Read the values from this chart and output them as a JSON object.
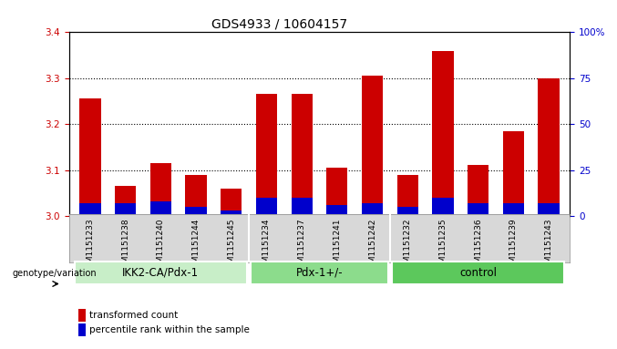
{
  "title": "GDS4933 / 10604157",
  "samples": [
    "GSM1151233",
    "GSM1151238",
    "GSM1151240",
    "GSM1151244",
    "GSM1151245",
    "GSM1151234",
    "GSM1151237",
    "GSM1151241",
    "GSM1151242",
    "GSM1151232",
    "GSM1151235",
    "GSM1151236",
    "GSM1151239",
    "GSM1151243"
  ],
  "red_values": [
    3.255,
    3.065,
    3.115,
    3.09,
    3.06,
    3.265,
    3.265,
    3.105,
    3.305,
    3.09,
    3.36,
    3.11,
    3.185,
    3.3
  ],
  "blue_percentile": [
    7,
    7,
    8,
    5,
    3,
    10,
    10,
    6,
    7,
    5,
    10,
    7,
    7,
    7
  ],
  "groups": [
    {
      "label": "IKK2-CA/Pdx-1",
      "start": 0,
      "end": 5,
      "color": "#c8eec8"
    },
    {
      "label": "Pdx-1+/-",
      "start": 5,
      "end": 9,
      "color": "#8cdc8c"
    },
    {
      "label": "control",
      "start": 9,
      "end": 14,
      "color": "#5cc85c"
    }
  ],
  "y_min": 3.0,
  "y_max": 3.4,
  "y_ticks": [
    3.0,
    3.1,
    3.2,
    3.3,
    3.4
  ],
  "y2_ticks": [
    0,
    25,
    50,
    75,
    100
  ],
  "bar_color_red": "#cc0000",
  "bar_color_blue": "#0000cc",
  "bar_width": 0.6,
  "tick_color_left": "#cc0000",
  "tick_color_right": "#0000cc",
  "title_fontsize": 10,
  "tick_fontsize": 7.5,
  "sample_fontsize": 6.5,
  "group_label_fontsize": 8.5,
  "legend_fontsize": 7.5,
  "genotype_label": "genotype/variation"
}
